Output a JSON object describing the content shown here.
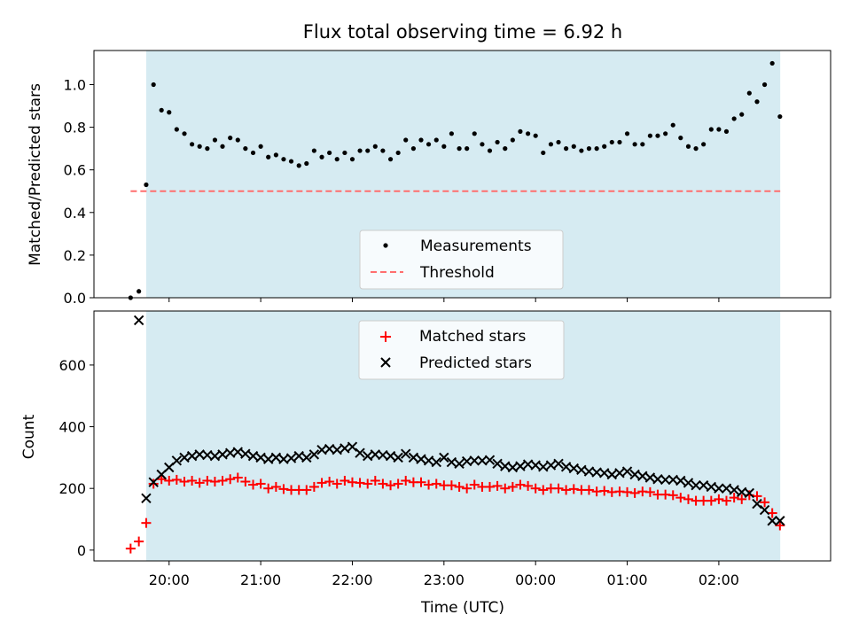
{
  "chart_data": [
    {
      "type": "scatter",
      "title": "Flux total observing time = 6.92 h",
      "ylabel": "Matched/Predicted stars",
      "xlabel": "",
      "xlim": [
        -0.82,
        7.22
      ],
      "ylim": [
        0.0,
        1.16
      ],
      "yticks": [
        0.0,
        0.2,
        0.4,
        0.6,
        0.8,
        1.0
      ],
      "ytick_labels": [
        "0.0",
        "0.2",
        "0.4",
        "0.6",
        "0.8",
        "1.0"
      ],
      "grid": false,
      "legend_position": "lower-center",
      "shaded_span": {
        "x0": -0.25,
        "x1": 6.67,
        "color": "#add8e6"
      },
      "threshold": {
        "name": "Threshold",
        "value": 0.5,
        "x0": -0.42,
        "x1": 6.67,
        "color": "#ff6e6e",
        "style": "dashed"
      },
      "series": [
        {
          "name": "Measurements",
          "marker": "dot",
          "color": "#000000",
          "x": [
            -0.42,
            -0.33,
            -0.25,
            -0.17,
            -0.083,
            0.0,
            0.083,
            0.167,
            0.25,
            0.333,
            0.417,
            0.5,
            0.583,
            0.667,
            0.75,
            0.833,
            0.917,
            1.0,
            1.083,
            1.167,
            1.25,
            1.333,
            1.417,
            1.5,
            1.583,
            1.667,
            1.75,
            1.833,
            1.917,
            2.0,
            2.083,
            2.167,
            2.25,
            2.333,
            2.417,
            2.5,
            2.583,
            2.667,
            2.75,
            2.833,
            2.917,
            3.0,
            3.083,
            3.167,
            3.25,
            3.333,
            3.417,
            3.5,
            3.583,
            3.667,
            3.75,
            3.833,
            3.917,
            4.0,
            4.083,
            4.167,
            4.25,
            4.333,
            4.417,
            4.5,
            4.583,
            4.667,
            4.75,
            4.833,
            4.917,
            5.0,
            5.083,
            5.167,
            5.25,
            5.333,
            5.417,
            5.5,
            5.583,
            5.667,
            5.75,
            5.833,
            5.917,
            6.0,
            6.083,
            6.167,
            6.25,
            6.333,
            6.417,
            6.5,
            6.583,
            6.667
          ],
          "y": [
            0.0,
            0.03,
            0.53,
            1.0,
            0.88,
            0.87,
            0.79,
            0.77,
            0.72,
            0.71,
            0.7,
            0.74,
            0.71,
            0.75,
            0.74,
            0.7,
            0.68,
            0.71,
            0.66,
            0.67,
            0.65,
            0.64,
            0.62,
            0.63,
            0.69,
            0.66,
            0.68,
            0.65,
            0.68,
            0.65,
            0.69,
            0.69,
            0.71,
            0.69,
            0.65,
            0.68,
            0.74,
            0.7,
            0.74,
            0.72,
            0.74,
            0.71,
            0.77,
            0.7,
            0.7,
            0.77,
            0.72,
            0.69,
            0.73,
            0.7,
            0.74,
            0.78,
            0.77,
            0.76,
            0.68,
            0.72,
            0.73,
            0.7,
            0.71,
            0.69,
            0.7,
            0.7,
            0.71,
            0.73,
            0.73,
            0.77,
            0.72,
            0.72,
            0.76,
            0.76,
            0.77,
            0.81,
            0.75,
            0.71,
            0.7,
            0.72,
            0.79,
            0.79,
            0.78,
            0.84,
            0.86,
            0.96,
            0.92,
            1.0,
            1.1,
            0.85
          ]
        }
      ]
    },
    {
      "type": "scatter",
      "title": "",
      "ylabel": "Count",
      "xlabel": "Time (UTC)",
      "xlim": [
        -0.82,
        7.22
      ],
      "ylim": [
        -35,
        775
      ],
      "yticks": [
        0,
        200,
        400,
        600
      ],
      "ytick_labels": [
        "0",
        "200",
        "400",
        "600"
      ],
      "xticks": [
        0,
        1,
        2,
        3,
        4,
        5,
        6
      ],
      "xtick_labels": [
        "20:00",
        "21:00",
        "22:00",
        "23:00",
        "00:00",
        "01:00",
        "02:00"
      ],
      "grid": false,
      "legend_position": "upper-center",
      "shaded_span": {
        "x0": -0.25,
        "x1": 6.67,
        "color": "#add8e6"
      },
      "series": [
        {
          "name": "Matched stars",
          "marker": "plus",
          "color": "#ff0000",
          "x": [
            -0.42,
            -0.33,
            -0.25,
            -0.17,
            -0.083,
            0.0,
            0.083,
            0.167,
            0.25,
            0.333,
            0.417,
            0.5,
            0.583,
            0.667,
            0.75,
            0.833,
            0.917,
            1.0,
            1.083,
            1.167,
            1.25,
            1.333,
            1.417,
            1.5,
            1.583,
            1.667,
            1.75,
            1.833,
            1.917,
            2.0,
            2.083,
            2.167,
            2.25,
            2.333,
            2.417,
            2.5,
            2.583,
            2.667,
            2.75,
            2.833,
            2.917,
            3.0,
            3.083,
            3.167,
            3.25,
            3.333,
            3.417,
            3.5,
            3.583,
            3.667,
            3.75,
            3.833,
            3.917,
            4.0,
            4.083,
            4.167,
            4.25,
            4.333,
            4.417,
            4.5,
            4.583,
            4.667,
            4.75,
            4.833,
            4.917,
            5.0,
            5.083,
            5.167,
            5.25,
            5.333,
            5.417,
            5.5,
            5.583,
            5.667,
            5.75,
            5.833,
            5.917,
            6.0,
            6.083,
            6.167,
            6.25,
            6.333,
            6.417,
            6.5,
            6.583,
            6.667
          ],
          "y": [
            5,
            28,
            88,
            215,
            230,
            225,
            228,
            222,
            225,
            218,
            225,
            222,
            225,
            230,
            235,
            222,
            212,
            215,
            200,
            205,
            198,
            195,
            195,
            195,
            205,
            218,
            222,
            215,
            225,
            220,
            218,
            215,
            225,
            215,
            210,
            215,
            225,
            220,
            220,
            212,
            215,
            210,
            210,
            205,
            200,
            212,
            205,
            205,
            208,
            200,
            205,
            212,
            208,
            200,
            195,
            200,
            200,
            195,
            198,
            195,
            195,
            190,
            192,
            188,
            190,
            188,
            185,
            190,
            188,
            180,
            180,
            178,
            170,
            165,
            160,
            160,
            160,
            165,
            160,
            170,
            165,
            178,
            175,
            155,
            120,
            80
          ]
        },
        {
          "name": "Predicted stars",
          "marker": "x",
          "color": "#000000",
          "x": [
            -0.33,
            -0.25,
            -0.17,
            -0.083,
            0.0,
            0.083,
            0.167,
            0.25,
            0.333,
            0.417,
            0.5,
            0.583,
            0.667,
            0.75,
            0.833,
            0.917,
            1.0,
            1.083,
            1.167,
            1.25,
            1.333,
            1.417,
            1.5,
            1.583,
            1.667,
            1.75,
            1.833,
            1.917,
            2.0,
            2.083,
            2.167,
            2.25,
            2.333,
            2.417,
            2.5,
            2.583,
            2.667,
            2.75,
            2.833,
            2.917,
            3.0,
            3.083,
            3.167,
            3.25,
            3.333,
            3.417,
            3.5,
            3.583,
            3.667,
            3.75,
            3.833,
            3.917,
            4.0,
            4.083,
            4.167,
            4.25,
            4.333,
            4.417,
            4.5,
            4.583,
            4.667,
            4.75,
            4.833,
            4.917,
            5.0,
            5.083,
            5.167,
            5.25,
            5.333,
            5.417,
            5.5,
            5.583,
            5.667,
            5.75,
            5.833,
            5.917,
            6.0,
            6.083,
            6.167,
            6.25,
            6.333,
            6.417,
            6.5,
            6.583,
            6.667
          ],
          "y": [
            745,
            168,
            220,
            245,
            268,
            290,
            300,
            305,
            310,
            308,
            305,
            310,
            315,
            318,
            312,
            305,
            300,
            295,
            300,
            295,
            298,
            305,
            300,
            310,
            325,
            328,
            325,
            330,
            335,
            315,
            305,
            310,
            308,
            305,
            300,
            312,
            300,
            295,
            290,
            285,
            300,
            285,
            280,
            288,
            290,
            290,
            292,
            280,
            272,
            268,
            272,
            278,
            275,
            270,
            275,
            280,
            270,
            265,
            260,
            255,
            252,
            250,
            245,
            250,
            255,
            245,
            240,
            235,
            230,
            228,
            228,
            225,
            218,
            210,
            210,
            205,
            200,
            200,
            195,
            188,
            185,
            150,
            130,
            95,
            95
          ]
        }
      ]
    }
  ]
}
